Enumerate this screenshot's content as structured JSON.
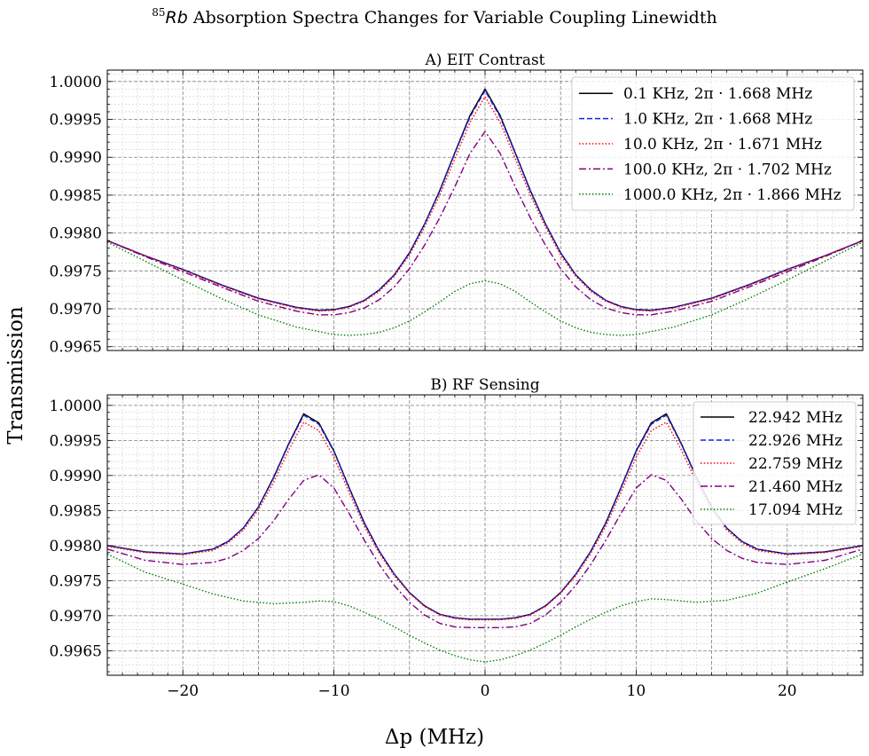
{
  "figure": {
    "suptitle_sup": "85",
    "suptitle_rb": "Rb",
    "suptitle_rest": " Absorption Spectra Changes for Variable Coupling Linewidth",
    "xlabel": "Δp (MHz)",
    "ylabel": "Transmission"
  },
  "chart_data": [
    {
      "type": "line",
      "title": "A) EIT Contrast",
      "xlim": [
        -25,
        25
      ],
      "ylim": [
        0.99645,
        1.00015
      ],
      "xticks": [
        -20,
        -10,
        0,
        10,
        20
      ],
      "xticklabels": [
        "−20",
        "−10",
        "0",
        "10",
        "20"
      ],
      "yticks": [
        0.9965,
        0.997,
        0.9975,
        0.998,
        0.9985,
        0.999,
        0.9995,
        1.0
      ],
      "yticklabels": [
        "0.9965",
        "0.9970",
        "0.9975",
        "0.9980",
        "0.9985",
        "0.9990",
        "0.9995",
        "1.0000"
      ],
      "grid": true,
      "legend_loc": "upper-right",
      "series": [
        {
          "name": "0.1 KHz, 2π · 1.668 MHz",
          "color": "#000000",
          "style": "solid",
          "x": [
            -25,
            -22.5,
            -20,
            -17.5,
            -15,
            -12.5,
            -11,
            -10,
            -9,
            -8,
            -7,
            -6,
            -5,
            -4,
            -3,
            -2,
            -1,
            0,
            1,
            2,
            3,
            4,
            5,
            6,
            7,
            8,
            9,
            10,
            11,
            12.5,
            15,
            17.5,
            20,
            22.5,
            25
          ],
          "y": [
            0.9979,
            0.9977,
            0.99752,
            0.99732,
            0.99714,
            0.99702,
            0.99698,
            0.99699,
            0.99703,
            0.99711,
            0.99725,
            0.99745,
            0.99774,
            0.99812,
            0.99856,
            0.99906,
            0.99955,
            0.9999,
            0.99955,
            0.99906,
            0.99856,
            0.99812,
            0.99774,
            0.99745,
            0.99725,
            0.99711,
            0.99703,
            0.99699,
            0.99698,
            0.99702,
            0.99714,
            0.99732,
            0.99752,
            0.9977,
            0.9979
          ]
        },
        {
          "name": "1.0 KHz, 2π · 1.668 MHz",
          "color": "#1f1fe6",
          "style": "dashed",
          "x": [
            -25,
            -22.5,
            -20,
            -17.5,
            -15,
            -12.5,
            -11,
            -10,
            -9,
            -8,
            -7,
            -6,
            -5,
            -4,
            -3,
            -2,
            -1,
            0,
            1,
            2,
            3,
            4,
            5,
            6,
            7,
            8,
            9,
            10,
            11,
            12.5,
            15,
            17.5,
            20,
            22.5,
            25
          ],
          "y": [
            0.9979,
            0.9977,
            0.99752,
            0.99732,
            0.99714,
            0.99702,
            0.99698,
            0.99699,
            0.99703,
            0.99711,
            0.99725,
            0.99745,
            0.99774,
            0.99812,
            0.99855,
            0.99905,
            0.99953,
            0.99988,
            0.99953,
            0.99905,
            0.99855,
            0.99812,
            0.99774,
            0.99745,
            0.99725,
            0.99711,
            0.99703,
            0.99699,
            0.99698,
            0.99702,
            0.99714,
            0.99732,
            0.99752,
            0.9977,
            0.9979
          ]
        },
        {
          "name": "10.0 KHz, 2π · 1.671 MHz",
          "color": "#ff0000",
          "style": "dotted",
          "x": [
            -25,
            -22.5,
            -20,
            -17.5,
            -15,
            -12.5,
            -11,
            -10,
            -9,
            -8,
            -7,
            -6,
            -5,
            -4,
            -3,
            -2,
            -1,
            0,
            1,
            2,
            3,
            4,
            5,
            6,
            7,
            8,
            9,
            10,
            11,
            12.5,
            15,
            17.5,
            20,
            22.5,
            25
          ],
          "y": [
            0.9979,
            0.9977,
            0.99751,
            0.99731,
            0.99713,
            0.99701,
            0.99697,
            0.99698,
            0.99702,
            0.9971,
            0.99723,
            0.99743,
            0.99771,
            0.99808,
            0.9985,
            0.99898,
            0.99946,
            0.9998,
            0.99946,
            0.99898,
            0.9985,
            0.99808,
            0.99771,
            0.99743,
            0.99723,
            0.9971,
            0.99702,
            0.99698,
            0.99697,
            0.99701,
            0.99713,
            0.99731,
            0.99751,
            0.9977,
            0.9979
          ]
        },
        {
          "name": "100.0 KHz, 2π · 1.702 MHz",
          "color": "#800080",
          "style": "dashdot",
          "x": [
            -25,
            -22.5,
            -20,
            -17.5,
            -15,
            -12.5,
            -11,
            -10,
            -9,
            -8,
            -7,
            -6,
            -5,
            -4,
            -3,
            -2,
            -1,
            0,
            1,
            2,
            3,
            4,
            5,
            6,
            7,
            8,
            9,
            10,
            11,
            12.5,
            15,
            17.5,
            20,
            22.5,
            25
          ],
          "y": [
            0.9979,
            0.99769,
            0.99749,
            0.99729,
            0.9971,
            0.99697,
            0.99692,
            0.99692,
            0.99695,
            0.99701,
            0.99712,
            0.99729,
            0.99753,
            0.99784,
            0.9982,
            0.99861,
            0.99905,
            0.99934,
            0.99905,
            0.99861,
            0.9982,
            0.99784,
            0.99753,
            0.99729,
            0.99712,
            0.99701,
            0.99695,
            0.99692,
            0.99692,
            0.99697,
            0.9971,
            0.99729,
            0.99749,
            0.99769,
            0.9979
          ]
        },
        {
          "name": "1000.0 KHz, 2π · 1.866 MHz",
          "color": "#008000",
          "style": "dotted",
          "x": [
            -25,
            -22.5,
            -20,
            -17.5,
            -15,
            -12.5,
            -11,
            -10,
            -9,
            -8,
            -7,
            -6,
            -5,
            -4,
            -3,
            -2,
            -1,
            0,
            1,
            2,
            3,
            4,
            5,
            6,
            7,
            8,
            9,
            10,
            11,
            12.5,
            15,
            17.5,
            20,
            22.5,
            25
          ],
          "y": [
            0.99788,
            0.99763,
            0.99738,
            0.99714,
            0.99692,
            0.99676,
            0.9967,
            0.99666,
            0.99665,
            0.99666,
            0.99669,
            0.99675,
            0.99684,
            0.99696,
            0.99709,
            0.99723,
            0.99733,
            0.99737,
            0.99733,
            0.99723,
            0.99709,
            0.99696,
            0.99684,
            0.99675,
            0.99669,
            0.99666,
            0.99665,
            0.99666,
            0.9967,
            0.99676,
            0.99692,
            0.99714,
            0.99738,
            0.99763,
            0.99788
          ]
        }
      ]
    },
    {
      "type": "line",
      "title": "B) RF Sensing",
      "xlim": [
        -25,
        25
      ],
      "ylim": [
        0.99615,
        1.00015
      ],
      "xticks": [
        -20,
        -10,
        0,
        10,
        20
      ],
      "xticklabels": [
        "−20",
        "−10",
        "0",
        "10",
        "20"
      ],
      "yticks": [
        0.9965,
        0.997,
        0.9975,
        0.998,
        0.9985,
        0.999,
        0.9995,
        1.0
      ],
      "yticklabels": [
        "0.9965",
        "0.9970",
        "0.9975",
        "0.9980",
        "0.9985",
        "0.9990",
        "0.9995",
        "1.0000"
      ],
      "grid": true,
      "legend_loc": "upper-right",
      "series": [
        {
          "name": "22.942 MHz",
          "color": "#000000",
          "style": "solid",
          "x": [
            -25,
            -22.5,
            -20,
            -18,
            -17,
            -16,
            -15,
            -14,
            -13,
            -12,
            -11,
            -10,
            -9,
            -8,
            -7,
            -6,
            -5,
            -4,
            -3,
            -2,
            -1,
            0,
            1,
            2,
            3,
            4,
            5,
            6,
            7,
            8,
            9,
            10,
            11,
            12,
            13,
            14,
            15,
            16,
            17,
            18,
            20,
            22.5,
            25
          ],
          "y": [
            0.998,
            0.99791,
            0.99788,
            0.99795,
            0.99806,
            0.99825,
            0.99855,
            0.99897,
            0.99945,
            0.99988,
            0.99975,
            0.99935,
            0.99883,
            0.99833,
            0.99792,
            0.99759,
            0.99733,
            0.99714,
            0.99702,
            0.99697,
            0.99695,
            0.99695,
            0.99695,
            0.99697,
            0.99702,
            0.99714,
            0.99733,
            0.99759,
            0.99792,
            0.99833,
            0.99883,
            0.99935,
            0.99975,
            0.99988,
            0.99945,
            0.99897,
            0.99855,
            0.99825,
            0.99806,
            0.99795,
            0.99788,
            0.99791,
            0.998
          ]
        },
        {
          "name": "22.926 MHz",
          "color": "#1f1fe6",
          "style": "dashed",
          "x": [
            -25,
            -22.5,
            -20,
            -18,
            -17,
            -16,
            -15,
            -14,
            -13,
            -12,
            -11,
            -10,
            -9,
            -8,
            -7,
            -6,
            -5,
            -4,
            -3,
            -2,
            -1,
            0,
            1,
            2,
            3,
            4,
            5,
            6,
            7,
            8,
            9,
            10,
            11,
            12,
            13,
            14,
            15,
            16,
            17,
            18,
            20,
            22.5,
            25
          ],
          "y": [
            0.998,
            0.99791,
            0.99788,
            0.99795,
            0.99806,
            0.99825,
            0.99855,
            0.99896,
            0.99944,
            0.99986,
            0.99973,
            0.99934,
            0.99882,
            0.99832,
            0.99792,
            0.99759,
            0.99733,
            0.99714,
            0.99702,
            0.99697,
            0.99695,
            0.99695,
            0.99695,
            0.99697,
            0.99702,
            0.99714,
            0.99733,
            0.99759,
            0.99792,
            0.99832,
            0.99882,
            0.99934,
            0.99973,
            0.99986,
            0.99944,
            0.99896,
            0.99855,
            0.99825,
            0.99806,
            0.99795,
            0.99788,
            0.99791,
            0.998
          ]
        },
        {
          "name": "22.759 MHz",
          "color": "#ff0000",
          "style": "dotted",
          "x": [
            -25,
            -22.5,
            -20,
            -18,
            -17,
            -16,
            -15,
            -14,
            -13,
            -12,
            -11,
            -10,
            -9,
            -8,
            -7,
            -6,
            -5,
            -4,
            -3,
            -2,
            -1,
            0,
            1,
            2,
            3,
            4,
            5,
            6,
            7,
            8,
            9,
            10,
            11,
            12,
            13,
            14,
            15,
            16,
            17,
            18,
            20,
            22.5,
            25
          ],
          "y": [
            0.99799,
            0.9979,
            0.99787,
            0.99793,
            0.99804,
            0.99822,
            0.99851,
            0.9989,
            0.99936,
            0.99976,
            0.99964,
            0.99926,
            0.99876,
            0.99828,
            0.99789,
            0.99757,
            0.99732,
            0.99713,
            0.99701,
            0.99696,
            0.99694,
            0.99694,
            0.99694,
            0.99696,
            0.99701,
            0.99713,
            0.99732,
            0.99757,
            0.99789,
            0.99828,
            0.99876,
            0.99926,
            0.99964,
            0.99976,
            0.99936,
            0.9989,
            0.99851,
            0.99822,
            0.99804,
            0.99793,
            0.99787,
            0.9979,
            0.99799
          ]
        },
        {
          "name": "21.460 MHz",
          "color": "#800080",
          "style": "dashdot",
          "x": [
            -25,
            -22.5,
            -20,
            -18,
            -17,
            -16,
            -15,
            -14,
            -13,
            -12,
            -11,
            -10,
            -9,
            -8,
            -7,
            -6,
            -5,
            -4,
            -3,
            -2,
            -1,
            0,
            1,
            2,
            3,
            4,
            5,
            6,
            7,
            8,
            9,
            10,
            11,
            12,
            13,
            14,
            15,
            16,
            17,
            18,
            20,
            22.5,
            25
          ],
          "y": [
            0.99795,
            0.99779,
            0.99773,
            0.99776,
            0.99782,
            0.99793,
            0.9981,
            0.99835,
            0.99866,
            0.99893,
            0.99901,
            0.99882,
            0.99846,
            0.99808,
            0.99773,
            0.99743,
            0.99719,
            0.99701,
            0.99689,
            0.99684,
            0.99683,
            0.99683,
            0.99683,
            0.99684,
            0.99689,
            0.99701,
            0.99719,
            0.99743,
            0.99773,
            0.99808,
            0.99846,
            0.99882,
            0.99901,
            0.99893,
            0.99866,
            0.99835,
            0.9981,
            0.99793,
            0.99782,
            0.99776,
            0.99773,
            0.99779,
            0.99795
          ]
        },
        {
          "name": "17.094 MHz",
          "color": "#008000",
          "style": "dotted",
          "x": [
            -25,
            -22.5,
            -20,
            -18,
            -16,
            -14,
            -12,
            -11,
            -10,
            -9,
            -8,
            -7,
            -6,
            -5,
            -4,
            -3,
            -2,
            -1,
            0,
            1,
            2,
            3,
            4,
            5,
            6,
            7,
            8,
            9,
            10,
            11,
            12,
            14,
            16,
            18,
            20,
            22.5,
            25
          ],
          "y": [
            0.99788,
            0.99762,
            0.99745,
            0.99731,
            0.99721,
            0.99717,
            0.99719,
            0.99721,
            0.9972,
            0.99714,
            0.99705,
            0.99695,
            0.99684,
            0.99672,
            0.99661,
            0.99651,
            0.99643,
            0.99637,
            0.99634,
            0.99637,
            0.99643,
            0.99651,
            0.99661,
            0.99672,
            0.99684,
            0.99695,
            0.99705,
            0.99714,
            0.9972,
            0.99724,
            0.99723,
            0.99719,
            0.99722,
            0.99732,
            0.99748,
            0.99767,
            0.99788
          ]
        }
      ]
    }
  ]
}
